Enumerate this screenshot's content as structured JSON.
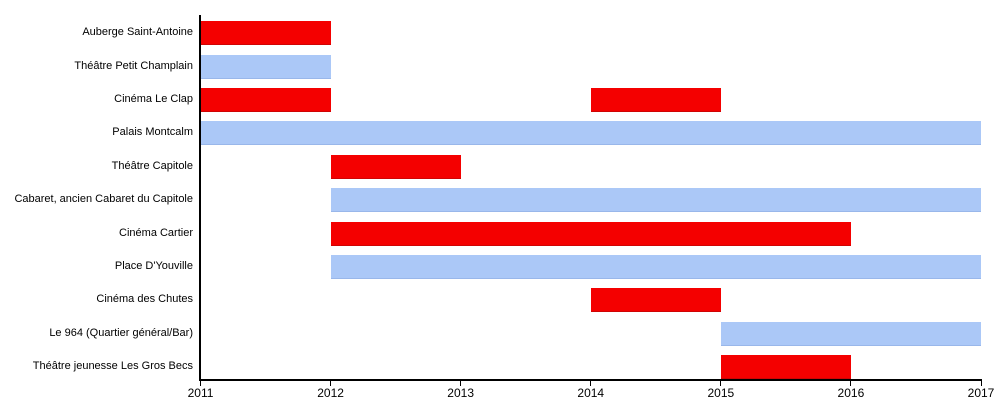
{
  "chart_data": {
    "type": "bar",
    "subtype": "horizontal-gantt-timeline",
    "title": "",
    "xlabel": "",
    "ylabel": "",
    "xlim": [
      2011,
      2017
    ],
    "x_ticks": [
      "2011",
      "2012",
      "2013",
      "2014",
      "2015",
      "2016",
      "2017"
    ],
    "grid": false,
    "legend": "none",
    "axis_color": "#000000",
    "background_color": "#ffffff",
    "palette": {
      "red": "#f40000",
      "blue": "#abc8f7"
    },
    "rows": [
      {
        "label": "Auberge Saint-Antoine",
        "segments": [
          {
            "start": 2011,
            "end": 2012,
            "color": "red"
          }
        ]
      },
      {
        "label": "Théâtre Petit Champlain",
        "segments": [
          {
            "start": 2011,
            "end": 2012,
            "color": "blue"
          }
        ]
      },
      {
        "label": "Cinéma Le Clap",
        "segments": [
          {
            "start": 2011,
            "end": 2012,
            "color": "red"
          },
          {
            "start": 2014,
            "end": 2015,
            "color": "red"
          }
        ]
      },
      {
        "label": "Palais Montcalm",
        "segments": [
          {
            "start": 2011,
            "end": 2017,
            "color": "blue"
          }
        ]
      },
      {
        "label": "Théâtre Capitole",
        "segments": [
          {
            "start": 2012,
            "end": 2013,
            "color": "red"
          }
        ]
      },
      {
        "label": "Cabaret, ancien Cabaret du Capitole",
        "segments": [
          {
            "start": 2012,
            "end": 2017,
            "color": "blue"
          }
        ]
      },
      {
        "label": "Cinéma Cartier",
        "segments": [
          {
            "start": 2012,
            "end": 2016,
            "color": "red"
          }
        ]
      },
      {
        "label": "Place D'Youville",
        "segments": [
          {
            "start": 2012,
            "end": 2017,
            "color": "blue"
          }
        ]
      },
      {
        "label": "Cinéma des Chutes",
        "segments": [
          {
            "start": 2014,
            "end": 2015,
            "color": "red"
          }
        ]
      },
      {
        "label": "Le 964 (Quartier général/Bar)",
        "segments": [
          {
            "start": 2015,
            "end": 2017,
            "color": "blue"
          }
        ]
      },
      {
        "label": "Théâtre jeunesse Les Gros Becs",
        "segments": [
          {
            "start": 2015,
            "end": 2016,
            "color": "red"
          }
        ]
      }
    ]
  }
}
